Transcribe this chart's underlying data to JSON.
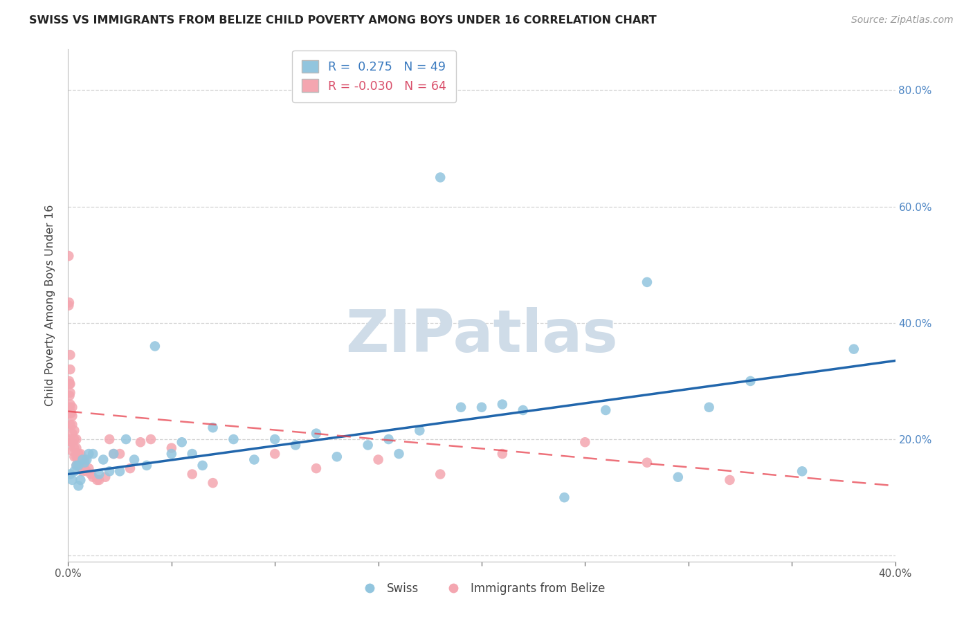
{
  "title": "SWISS VS IMMIGRANTS FROM BELIZE CHILD POVERTY AMONG BOYS UNDER 16 CORRELATION CHART",
  "source": "Source: ZipAtlas.com",
  "ylabel": "Child Poverty Among Boys Under 16",
  "xlim": [
    0.0,
    0.4
  ],
  "ylim": [
    -0.01,
    0.87
  ],
  "yticks": [
    0.0,
    0.2,
    0.4,
    0.6,
    0.8
  ],
  "xtick_positions": [
    0.0,
    0.05,
    0.1,
    0.15,
    0.2,
    0.25,
    0.3,
    0.35,
    0.4
  ],
  "swiss_R": 0.275,
  "swiss_N": 49,
  "belize_R": -0.03,
  "belize_N": 64,
  "swiss_color": "#92c5de",
  "belize_color": "#f4a6b0",
  "swiss_line_color": "#2166ac",
  "belize_line_color": "#e8424e",
  "belize_line_dash_color": "#e8424e",
  "watermark": "ZIPatlas",
  "swiss_x": [
    0.001,
    0.002,
    0.003,
    0.004,
    0.005,
    0.005,
    0.006,
    0.007,
    0.008,
    0.009,
    0.01,
    0.012,
    0.015,
    0.017,
    0.02,
    0.022,
    0.025,
    0.028,
    0.032,
    0.038,
    0.042,
    0.05,
    0.055,
    0.06,
    0.065,
    0.07,
    0.08,
    0.09,
    0.1,
    0.11,
    0.12,
    0.13,
    0.145,
    0.155,
    0.16,
    0.17,
    0.18,
    0.19,
    0.2,
    0.21,
    0.22,
    0.24,
    0.26,
    0.28,
    0.295,
    0.31,
    0.33,
    0.355,
    0.38
  ],
  "swiss_y": [
    0.14,
    0.13,
    0.145,
    0.155,
    0.155,
    0.12,
    0.13,
    0.165,
    0.16,
    0.165,
    0.175,
    0.175,
    0.14,
    0.165,
    0.145,
    0.175,
    0.145,
    0.2,
    0.165,
    0.155,
    0.36,
    0.175,
    0.195,
    0.175,
    0.155,
    0.22,
    0.2,
    0.165,
    0.2,
    0.19,
    0.21,
    0.17,
    0.19,
    0.2,
    0.175,
    0.215,
    0.65,
    0.255,
    0.255,
    0.26,
    0.25,
    0.1,
    0.25,
    0.47,
    0.135,
    0.255,
    0.3,
    0.145,
    0.355
  ],
  "belize_x": [
    0.0003,
    0.0003,
    0.0005,
    0.0005,
    0.0007,
    0.0007,
    0.0008,
    0.001,
    0.001,
    0.001,
    0.001,
    0.001,
    0.001,
    0.001,
    0.001,
    0.0015,
    0.0015,
    0.002,
    0.002,
    0.002,
    0.002,
    0.002,
    0.002,
    0.003,
    0.003,
    0.003,
    0.003,
    0.004,
    0.004,
    0.004,
    0.004,
    0.005,
    0.005,
    0.005,
    0.006,
    0.006,
    0.007,
    0.007,
    0.008,
    0.008,
    0.009,
    0.01,
    0.011,
    0.012,
    0.014,
    0.015,
    0.018,
    0.02,
    0.022,
    0.025,
    0.03,
    0.035,
    0.04,
    0.05,
    0.06,
    0.07,
    0.1,
    0.12,
    0.15,
    0.18,
    0.21,
    0.25,
    0.28,
    0.32
  ],
  "belize_y": [
    0.515,
    0.43,
    0.3,
    0.435,
    0.295,
    0.275,
    0.255,
    0.345,
    0.32,
    0.295,
    0.28,
    0.26,
    0.245,
    0.225,
    0.2,
    0.245,
    0.195,
    0.255,
    0.24,
    0.225,
    0.21,
    0.195,
    0.18,
    0.215,
    0.2,
    0.185,
    0.17,
    0.2,
    0.185,
    0.17,
    0.155,
    0.175,
    0.165,
    0.155,
    0.175,
    0.165,
    0.155,
    0.145,
    0.165,
    0.15,
    0.145,
    0.15,
    0.14,
    0.135,
    0.13,
    0.13,
    0.135,
    0.2,
    0.175,
    0.175,
    0.15,
    0.195,
    0.2,
    0.185,
    0.14,
    0.125,
    0.175,
    0.15,
    0.165,
    0.14,
    0.175,
    0.195,
    0.16,
    0.13
  ],
  "swiss_trend_x": [
    0.0,
    0.4
  ],
  "swiss_trend_y": [
    0.14,
    0.335
  ],
  "belize_trend_x": [
    0.0,
    0.4
  ],
  "belize_trend_y": [
    0.248,
    0.12
  ]
}
